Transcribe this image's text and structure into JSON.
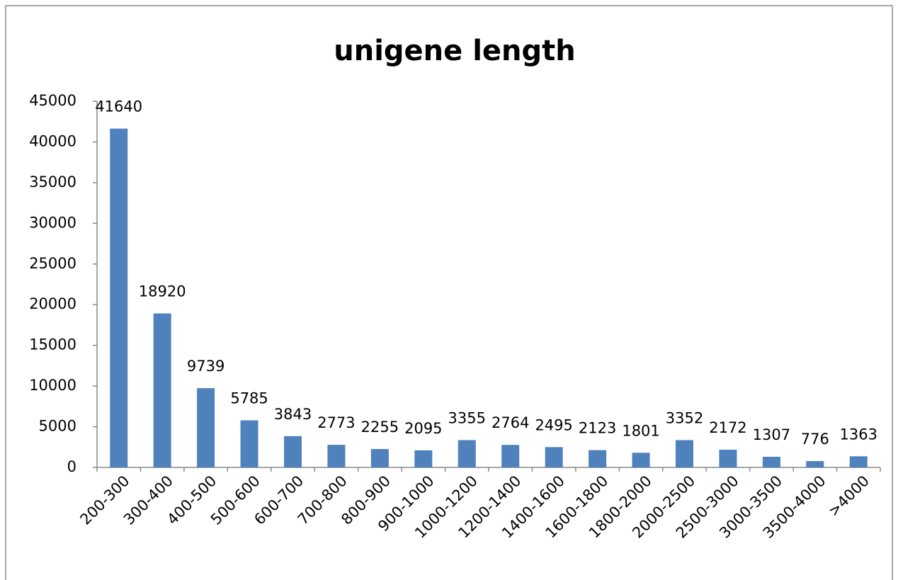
{
  "chart_data": {
    "type": "bar",
    "title": "unigene length",
    "categories": [
      "200-300",
      "300-400",
      "400-500",
      "500-600",
      "600-700",
      "700-800",
      "800-900",
      "900-1000",
      "1000-1200",
      "1200-1400",
      "1400-1600",
      "1600-1800",
      "1800-2000",
      "2000-2500",
      "2500-3000",
      "3000-3500",
      "3500-4000",
      ">4000"
    ],
    "values": [
      41640,
      18920,
      9739,
      5785,
      3843,
      2773,
      2255,
      2095,
      3355,
      2764,
      2495,
      2123,
      1801,
      3352,
      2172,
      1307,
      776,
      1363
    ],
    "color": "#4f81bd",
    "ylim": [
      0,
      45000
    ],
    "yticks": [
      0,
      5000,
      10000,
      15000,
      20000,
      25000,
      30000,
      35000,
      40000,
      45000
    ],
    "grid": false
  }
}
